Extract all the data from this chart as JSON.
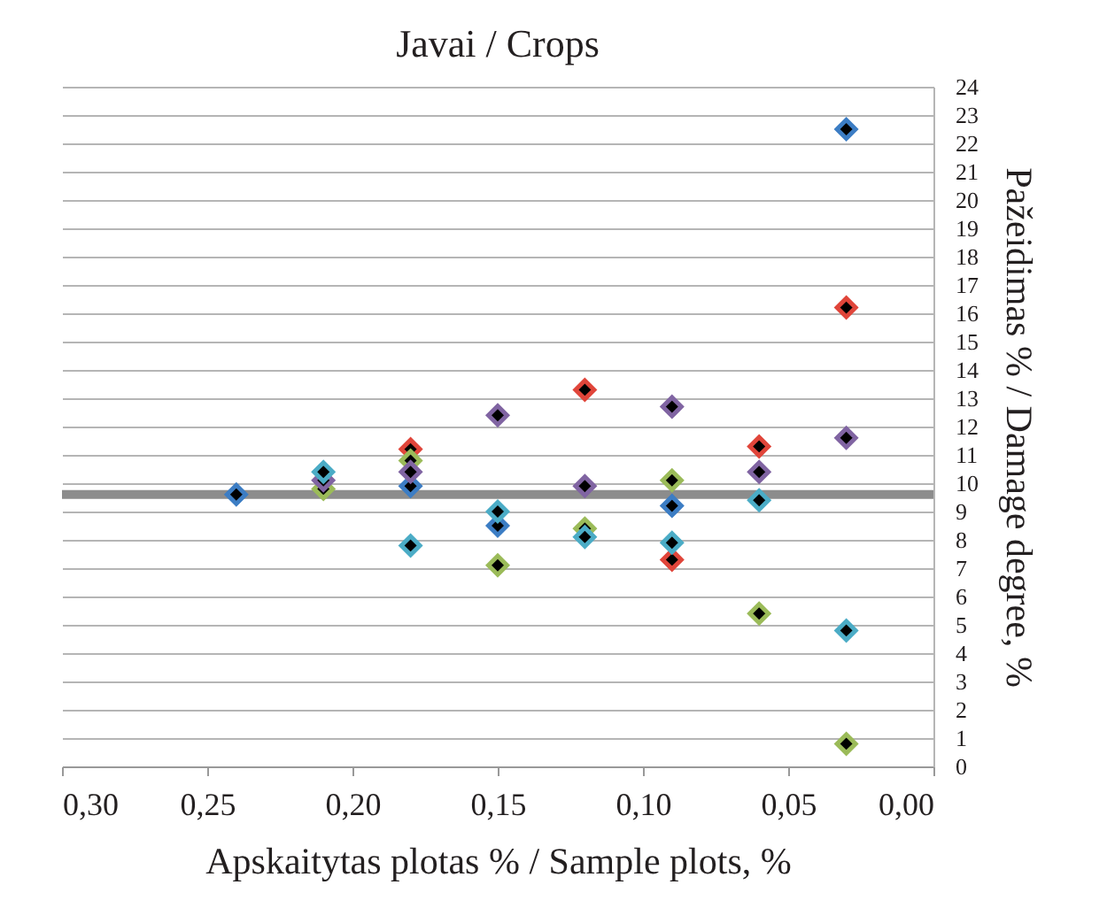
{
  "chart_data": {
    "type": "scatter",
    "title": "Javai / Crops",
    "xlabel": "Apskaitytas plotas % / Sample plots, %",
    "ylabel": "Pažeidimas % / Damage degree, %",
    "xlim": [
      0.3,
      0.0
    ],
    "xticks": [
      {
        "value": 0.3,
        "label": "0,30"
      },
      {
        "value": 0.25,
        "label": "0,25"
      },
      {
        "value": 0.2,
        "label": "0,20"
      },
      {
        "value": 0.15,
        "label": "0,15"
      },
      {
        "value": 0.1,
        "label": "0,10"
      },
      {
        "value": 0.05,
        "label": "0,05"
      },
      {
        "value": 0.0,
        "label": "0,00"
      }
    ],
    "ylim": [
      0,
      24
    ],
    "yticks": [
      0,
      1,
      2,
      3,
      4,
      5,
      6,
      7,
      8,
      9,
      10,
      11,
      12,
      13,
      14,
      15,
      16,
      17,
      18,
      19,
      20,
      21,
      22,
      23,
      24
    ],
    "grid": "y",
    "marker": "diamond",
    "legend": false,
    "series": [
      {
        "color": "#3c7dc4",
        "x": [
          0.24,
          0.18,
          0.15,
          0.09,
          0.03
        ],
        "values": [
          9.6,
          9.9,
          8.5,
          9.2,
          22.5
        ]
      },
      {
        "color": "#e0453a",
        "x": [
          0.18,
          0.12,
          0.09,
          0.06,
          0.03
        ],
        "values": [
          11.2,
          13.3,
          7.3,
          11.3,
          16.2
        ]
      },
      {
        "color": "#9bbb59",
        "x": [
          0.21,
          0.18,
          0.15,
          0.12,
          0.09,
          0.06,
          0.03
        ],
        "values": [
          9.8,
          10.8,
          7.1,
          8.4,
          10.1,
          5.4,
          0.8
        ]
      },
      {
        "color": "#8064a2",
        "x": [
          0.21,
          0.18,
          0.15,
          0.12,
          0.09,
          0.06,
          0.03
        ],
        "values": [
          10.1,
          10.4,
          12.4,
          9.9,
          12.7,
          10.4,
          11.6
        ]
      },
      {
        "color": "#4bacc6",
        "x": [
          0.21,
          0.18,
          0.15,
          0.12,
          0.09,
          0.06,
          0.03
        ],
        "values": [
          10.4,
          7.8,
          9.0,
          8.1,
          7.9,
          9.4,
          4.8
        ]
      }
    ],
    "ref_lines": [
      {
        "axis": "y",
        "value": 9.6,
        "color": "#8c8c8c"
      }
    ]
  }
}
